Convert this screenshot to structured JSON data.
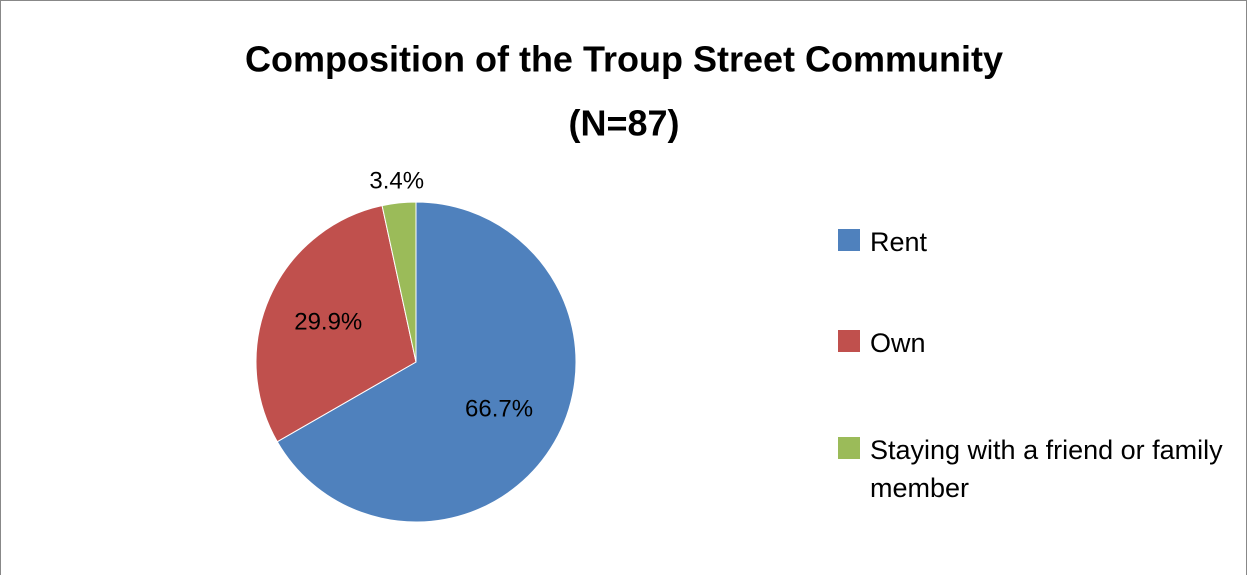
{
  "chart_data": {
    "type": "pie",
    "title": "Composition of the Troup Street Community",
    "subtitle": "(N=87)",
    "categories": [
      "Rent",
      "Own",
      "Staying with a friend or family member"
    ],
    "values": [
      66.7,
      29.9,
      3.4
    ],
    "value_labels": [
      "66.7%",
      "29.9%",
      "3.4%"
    ],
    "colors": [
      "#4f81bd",
      "#c0504d",
      "#9bbb59"
    ],
    "legend": "right"
  }
}
